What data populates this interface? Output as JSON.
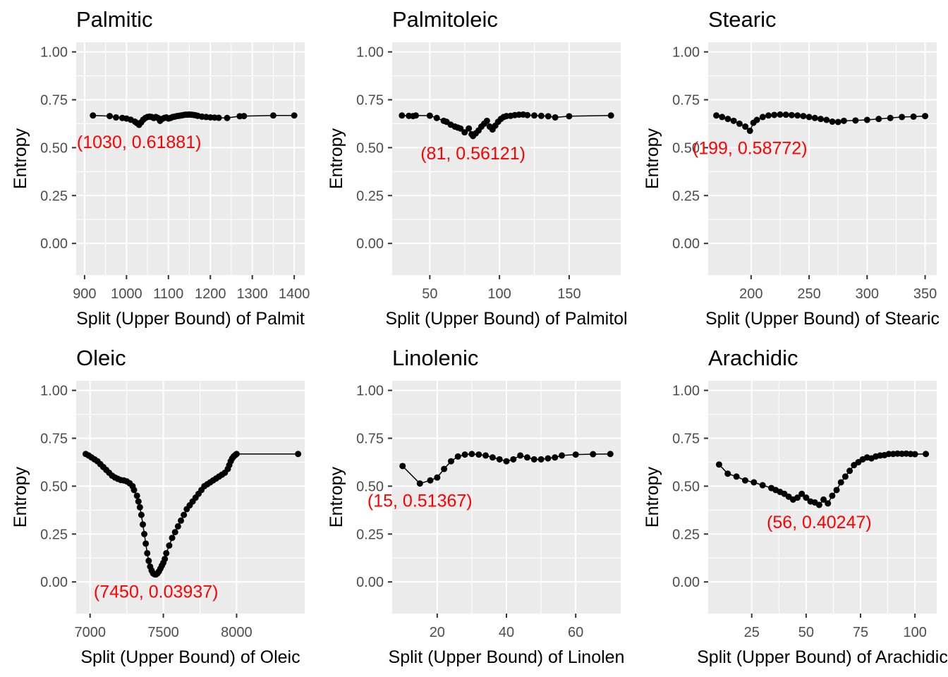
{
  "y_axis_label": "Entropy",
  "y_ticks": [
    "0.00",
    "0.25",
    "0.50",
    "0.75",
    "1.00"
  ],
  "colors": {
    "panel": "#EBEBEB",
    "grid": "#FFFFFF",
    "point": "#000000",
    "annotation": "#FF0000",
    "tick": "#4D4D4D"
  },
  "chart_data": [
    {
      "type": "line",
      "title": "Palmitic",
      "xlabel": "Split (Upper Bound) of Palmit",
      "ylabel": "Entropy",
      "xlim": [
        880,
        1425
      ],
      "ylim": [
        -0.165,
        1.05
      ],
      "xticks": [
        900,
        1000,
        1100,
        1200,
        1300,
        1400
      ],
      "x": [
        920,
        960,
        975,
        990,
        1000,
        1010,
        1020,
        1025,
        1030,
        1035,
        1040,
        1045,
        1050,
        1055,
        1060,
        1065,
        1070,
        1075,
        1080,
        1085,
        1090,
        1095,
        1100,
        1105,
        1110,
        1115,
        1120,
        1125,
        1130,
        1135,
        1140,
        1145,
        1150,
        1155,
        1160,
        1165,
        1170,
        1180,
        1190,
        1200,
        1210,
        1220,
        1240,
        1270,
        1280,
        1350,
        1400
      ],
      "y": [
        0.668,
        0.665,
        0.658,
        0.655,
        0.652,
        0.646,
        0.636,
        0.628,
        0.619,
        0.632,
        0.646,
        0.655,
        0.66,
        0.662,
        0.66,
        0.655,
        0.66,
        0.655,
        0.64,
        0.65,
        0.655,
        0.658,
        0.652,
        0.655,
        0.66,
        0.662,
        0.665,
        0.666,
        0.668,
        0.67,
        0.672,
        0.672,
        0.673,
        0.672,
        0.671,
        0.669,
        0.666,
        0.662,
        0.66,
        0.658,
        0.657,
        0.656,
        0.655,
        0.664,
        0.665,
        0.668,
        0.668
      ],
      "annotation": {
        "text": "(1030, 0.61881)",
        "x": 1030,
        "y": 0.61881
      }
    },
    {
      "type": "line",
      "title": "Palmitoleic",
      "xlabel": "Split (Upper Bound) of Palmitol",
      "ylabel": "Entropy",
      "xlim": [
        23,
        187
      ],
      "ylim": [
        -0.165,
        1.05
      ],
      "xticks": [
        50,
        100,
        150
      ],
      "x": [
        30,
        35,
        38,
        40,
        50,
        55,
        60,
        62,
        65,
        68,
        70,
        72,
        75,
        78,
        80,
        81,
        83,
        85,
        87,
        89,
        91,
        93,
        95,
        97,
        99,
        101,
        103,
        105,
        108,
        111,
        114,
        117,
        120,
        125,
        130,
        135,
        140,
        150,
        180
      ],
      "y": [
        0.668,
        0.666,
        0.665,
        0.668,
        0.667,
        0.655,
        0.64,
        0.635,
        0.62,
        0.61,
        0.605,
        0.6,
        0.58,
        0.6,
        0.57,
        0.561,
        0.575,
        0.59,
        0.61,
        0.625,
        0.64,
        0.61,
        0.595,
        0.615,
        0.635,
        0.65,
        0.66,
        0.665,
        0.666,
        0.67,
        0.672,
        0.673,
        0.67,
        0.668,
        0.666,
        0.664,
        0.658,
        0.664,
        0.668
      ],
      "annotation": {
        "text": "(81, 0.56121)",
        "x": 81,
        "y": 0.56121
      }
    },
    {
      "type": "line",
      "title": "Stearic",
      "xlabel": "Split (Upper Bound) of Stearic",
      "ylabel": "Entropy",
      "xlim": [
        163,
        360
      ],
      "ylim": [
        -0.165,
        1.05
      ],
      "xticks": [
        200,
        250,
        300,
        350
      ],
      "x": [
        170,
        175,
        180,
        185,
        190,
        195,
        199,
        202,
        205,
        210,
        215,
        220,
        225,
        230,
        235,
        240,
        245,
        250,
        255,
        260,
        265,
        270,
        275,
        280,
        290,
        300,
        310,
        320,
        330,
        340,
        350
      ],
      "y": [
        0.668,
        0.66,
        0.65,
        0.64,
        0.625,
        0.61,
        0.588,
        0.63,
        0.645,
        0.66,
        0.668,
        0.671,
        0.673,
        0.672,
        0.67,
        0.668,
        0.665,
        0.66,
        0.655,
        0.65,
        0.645,
        0.636,
        0.634,
        0.64,
        0.642,
        0.645,
        0.65,
        0.655,
        0.66,
        0.662,
        0.665
      ],
      "annotation": {
        "text": "(199, 0.58772)",
        "x": 199,
        "y": 0.58772
      }
    },
    {
      "type": "line",
      "title": "Oleic",
      "xlabel": "Split (Upper Bound) of Oleic",
      "ylabel": "Entropy",
      "xlim": [
        6905,
        8465
      ],
      "ylim": [
        -0.165,
        1.05
      ],
      "xticks": [
        7000,
        7500,
        8000
      ],
      "x": [
        6970,
        6990,
        7010,
        7030,
        7050,
        7070,
        7090,
        7110,
        7130,
        7150,
        7170,
        7190,
        7210,
        7230,
        7250,
        7270,
        7290,
        7300,
        7320,
        7330,
        7340,
        7350,
        7360,
        7370,
        7380,
        7390,
        7400,
        7410,
        7420,
        7430,
        7440,
        7450,
        7460,
        7470,
        7480,
        7490,
        7500,
        7510,
        7520,
        7540,
        7560,
        7580,
        7600,
        7620,
        7640,
        7660,
        7680,
        7700,
        7720,
        7740,
        7760,
        7780,
        7800,
        7820,
        7840,
        7860,
        7880,
        7900,
        7920,
        7940,
        7950,
        7960,
        7970,
        7980,
        7990,
        8000,
        8420
      ],
      "y": [
        0.668,
        0.66,
        0.65,
        0.64,
        0.63,
        0.615,
        0.6,
        0.585,
        0.57,
        0.555,
        0.545,
        0.538,
        0.532,
        0.53,
        0.525,
        0.515,
        0.5,
        0.48,
        0.45,
        0.42,
        0.39,
        0.35,
        0.3,
        0.25,
        0.2,
        0.15,
        0.11,
        0.08,
        0.06,
        0.045,
        0.04,
        0.039,
        0.045,
        0.055,
        0.07,
        0.085,
        0.1,
        0.12,
        0.15,
        0.19,
        0.23,
        0.26,
        0.29,
        0.32,
        0.35,
        0.38,
        0.4,
        0.42,
        0.44,
        0.46,
        0.48,
        0.5,
        0.51,
        0.52,
        0.53,
        0.54,
        0.55,
        0.56,
        0.57,
        0.59,
        0.61,
        0.63,
        0.645,
        0.655,
        0.662,
        0.668,
        0.668
      ],
      "annotation": {
        "text": "(7450, 0.03937)",
        "x": 7450,
        "y": 0.03937
      }
    },
    {
      "type": "line",
      "title": "Linolenic",
      "xlabel": "Split (Upper Bound) of Linolen",
      "ylabel": "Entropy",
      "xlim": [
        7,
        73
      ],
      "ylim": [
        -0.165,
        1.05
      ],
      "xticks": [
        20,
        40,
        60
      ],
      "x": [
        10,
        15,
        18,
        20,
        22,
        24,
        26,
        28,
        30,
        32,
        34,
        36,
        38,
        40,
        42,
        44,
        46,
        48,
        50,
        52,
        54,
        56,
        60,
        65,
        70
      ],
      "y": [
        0.605,
        0.514,
        0.53,
        0.545,
        0.59,
        0.63,
        0.655,
        0.665,
        0.668,
        0.665,
        0.66,
        0.65,
        0.64,
        0.63,
        0.64,
        0.66,
        0.65,
        0.64,
        0.64,
        0.645,
        0.65,
        0.66,
        0.665,
        0.667,
        0.668
      ],
      "annotation": {
        "text": "(15, 0.51367)",
        "x": 15,
        "y": 0.51367
      }
    },
    {
      "type": "line",
      "title": "Arachidic",
      "xlabel": "Split (Upper Bound) of Arachidic",
      "ylabel": "Entropy",
      "xlim": [
        5,
        110
      ],
      "ylim": [
        -0.165,
        1.05
      ],
      "xticks": [
        25,
        50,
        75,
        100
      ],
      "x": [
        10,
        14,
        18,
        22,
        26,
        30,
        34,
        36,
        38,
        40,
        42,
        44,
        46,
        48,
        50,
        52,
        54,
        56,
        58,
        60,
        62,
        64,
        66,
        68,
        70,
        72,
        74,
        76,
        78,
        80,
        82,
        84,
        86,
        88,
        90,
        92,
        94,
        96,
        98,
        100,
        105
      ],
      "y": [
        0.613,
        0.565,
        0.55,
        0.53,
        0.52,
        0.505,
        0.49,
        0.48,
        0.47,
        0.46,
        0.445,
        0.43,
        0.44,
        0.46,
        0.44,
        0.42,
        0.415,
        0.402,
        0.43,
        0.41,
        0.45,
        0.48,
        0.52,
        0.55,
        0.58,
        0.61,
        0.625,
        0.64,
        0.65,
        0.645,
        0.655,
        0.66,
        0.662,
        0.668,
        0.668,
        0.67,
        0.669,
        0.67,
        0.668,
        0.667,
        0.668
      ],
      "annotation": {
        "text": "(56, 0.40247)",
        "x": 56,
        "y": 0.40247
      }
    }
  ]
}
